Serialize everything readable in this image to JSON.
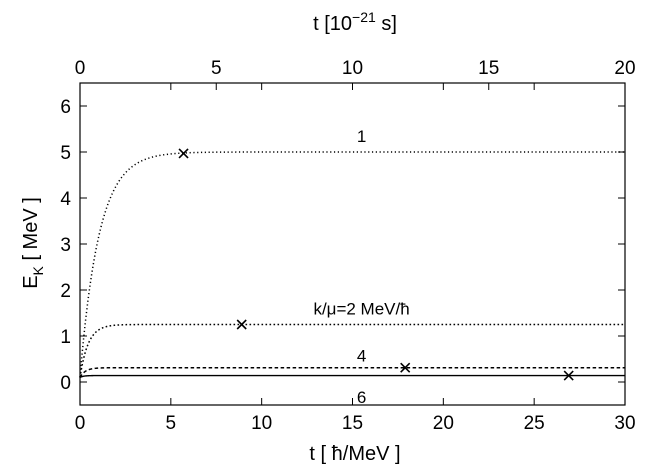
{
  "chart_data": {
    "type": "line",
    "xlabel": "t  [ ħ/MeV ]",
    "ylabel": "E",
    "ylabel_subscript": "K",
    "ylabel_unit": "  [ MeV ]",
    "x2label": "t [10",
    "x2label_exponent": "−21",
    "x2label_suffix": " s]",
    "xlim": [
      0,
      30
    ],
    "ylim": [
      -0.5,
      6.5
    ],
    "x2lim": [
      0,
      20
    ],
    "xticks": [
      0,
      5,
      10,
      15,
      20,
      25,
      30
    ],
    "yticks": [
      0,
      1,
      2,
      3,
      4,
      5,
      6
    ],
    "x2ticks": [
      0,
      5,
      10,
      15,
      20
    ],
    "grid": false,
    "legend": "none",
    "series": [
      {
        "label": "1",
        "style": "dotted-fine",
        "asymptote": 5.0,
        "tau": 1.05,
        "x": [
          0,
          0.5,
          1,
          1.5,
          2,
          2.5,
          3,
          4,
          5,
          6,
          8,
          10,
          15,
          20,
          25,
          30
        ],
        "y": [
          0.1,
          1.95,
          3.15,
          3.9,
          4.35,
          4.62,
          4.78,
          4.92,
          4.97,
          4.99,
          5.0,
          5.0,
          5.0,
          5.0,
          5.0,
          5.0
        ],
        "marker": [
          5.7,
          4.97
        ]
      },
      {
        "label": "k/μ=2 MeV/ħ",
        "style": "dotted",
        "asymptote": 1.25,
        "tau": 0.45,
        "x": [
          0,
          0.5,
          1,
          1.5,
          2,
          3,
          4,
          6,
          10,
          15,
          20,
          25,
          30
        ],
        "y": [
          0.1,
          0.85,
          1.13,
          1.21,
          1.24,
          1.25,
          1.25,
          1.25,
          1.25,
          1.25,
          1.25,
          1.25,
          1.25
        ],
        "marker": [
          8.9,
          1.25
        ]
      },
      {
        "label": "4",
        "style": "dashed",
        "asymptote": 0.31,
        "tau": 0.3,
        "x": [
          0,
          0.5,
          1,
          2,
          5,
          10,
          15,
          20,
          25,
          30
        ],
        "y": [
          0.1,
          0.29,
          0.31,
          0.31,
          0.31,
          0.31,
          0.31,
          0.31,
          0.31,
          0.31
        ],
        "marker": [
          17.9,
          0.31
        ]
      },
      {
        "label": "6",
        "style": "solid",
        "asymptote": 0.14,
        "tau": 0.2,
        "x": [
          0,
          0.5,
          1,
          2,
          5,
          10,
          15,
          20,
          25,
          30
        ],
        "y": [
          0.1,
          0.14,
          0.14,
          0.14,
          0.14,
          0.14,
          0.14,
          0.14,
          0.14,
          0.14
        ],
        "marker": [
          26.9,
          0.14
        ]
      }
    ],
    "series_label_positions": [
      {
        "label": "1",
        "x": 15.5,
        "y": 5.35
      },
      {
        "label": "k/μ=2 MeV/ħ",
        "x": 15.5,
        "y": 1.6
      },
      {
        "label": "4",
        "x": 15.5,
        "y": 0.58
      },
      {
        "label": "6",
        "x": 15.5,
        "y": -0.33
      }
    ],
    "marker_symbol": "x"
  }
}
